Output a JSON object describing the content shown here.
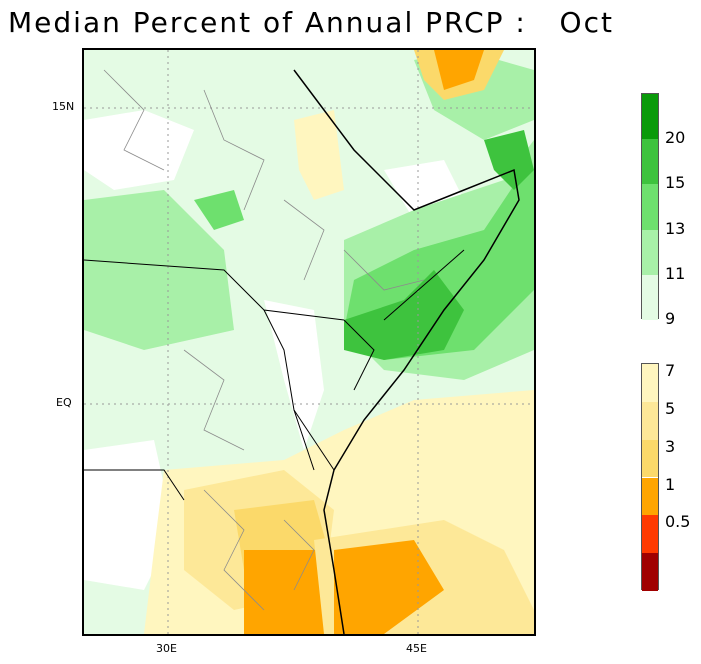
{
  "title": "Median Percent of Annual PRCP :   Oct",
  "map": {
    "lat_labels": [
      "15N",
      "EQ"
    ],
    "lon_labels": [
      "30E",
      "45E"
    ]
  },
  "colorbar": {
    "upper": [
      {
        "color": "#0a9a0a",
        "label": "20"
      },
      {
        "color": "#3ec33e",
        "label": "15"
      },
      {
        "color": "#6ee06e",
        "label": "13"
      },
      {
        "color": "#a8f0a8",
        "label": "11"
      },
      {
        "color": "#e4fbe4",
        "label": "9"
      }
    ],
    "lower": [
      {
        "color": "#fff6bf",
        "label": "7"
      },
      {
        "color": "#fde898",
        "label": "5"
      },
      {
        "color": "#fbd96a",
        "label": "3"
      },
      {
        "color": "#ffa500",
        "label": "1"
      },
      {
        "color": "#ff3a00",
        "label": "0.5"
      },
      {
        "color": "#a00000",
        "label": ""
      }
    ]
  }
}
